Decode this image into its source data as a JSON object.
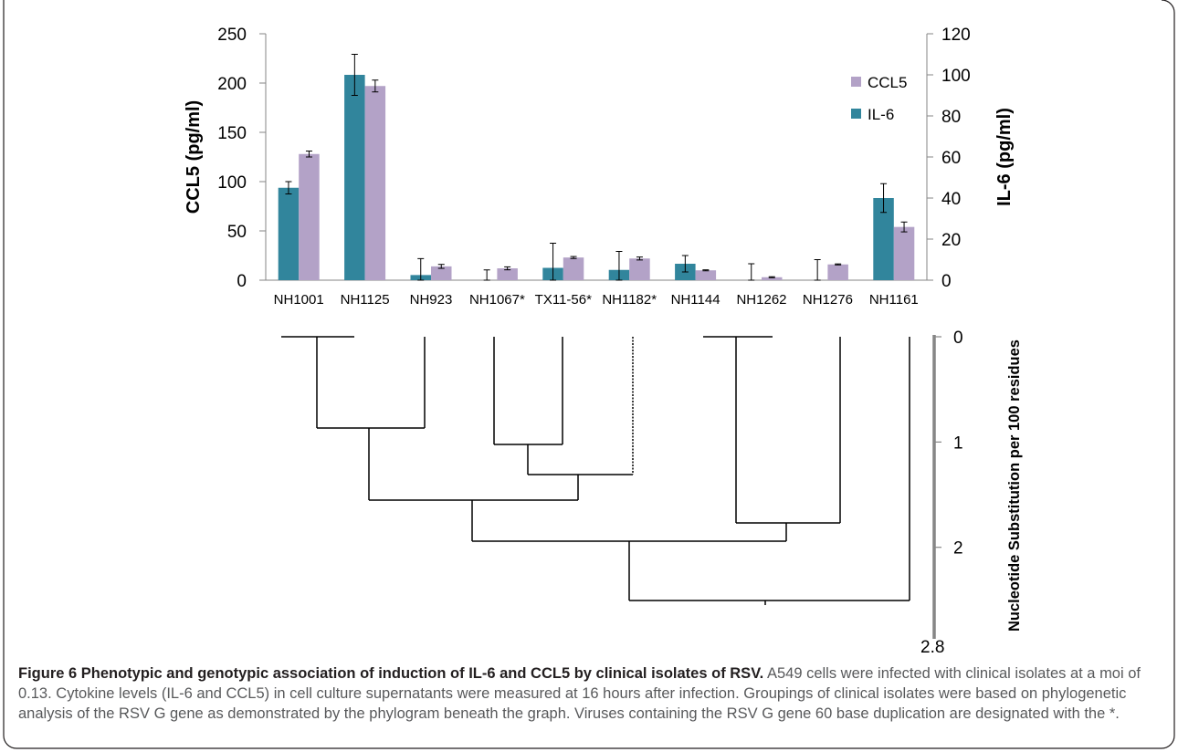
{
  "chart_data": {
    "type": "bar",
    "categories": [
      "NH1001",
      "NH1125",
      "NH923",
      "NH1067*",
      "TX11-56*",
      "NH1182*",
      "NH1144",
      "NH1262",
      "NH1276",
      "NH1161"
    ],
    "series": [
      {
        "name": "IL-6",
        "axis": "right",
        "color": "#31859c",
        "values": [
          45,
          100,
          2.5,
          0,
          6,
          5,
          8,
          0,
          0,
          40
        ],
        "errors": [
          3,
          10,
          8,
          5,
          12,
          9,
          4,
          8,
          10,
          7
        ]
      },
      {
        "name": "CCL5",
        "axis": "left",
        "color": "#b3a2c7",
        "values": [
          128,
          197,
          14,
          12,
          23,
          22,
          10,
          3,
          16,
          54
        ],
        "errors": [
          3,
          6,
          2,
          1.5,
          1,
          1.5,
          0.5,
          0.5,
          0.5,
          5
        ]
      }
    ],
    "left_axis": {
      "label": "CCL5 (pg/ml)",
      "ticks": [
        "0",
        "50",
        "100",
        "150",
        "200",
        "250"
      ],
      "range": [
        0,
        250
      ]
    },
    "right_axis": {
      "label": "IL-6 (pg/ml)",
      "ticks": [
        "0",
        "20",
        "40",
        "60",
        "80",
        "100",
        "120"
      ],
      "range": [
        0,
        120
      ]
    },
    "legend_position": "top-right",
    "grid": false
  },
  "phylogram": {
    "scale_label": "Nucleotide Substitution per 100 residues",
    "scale_ticks": [
      "0",
      "1",
      "2",
      "2.8"
    ],
    "scale_range": [
      0,
      2.8
    ],
    "tips": [
      "NH1001",
      "NH1125",
      "NH923",
      "NH1067*",
      "TX11-56*",
      "NH1182*",
      "NH1144",
      "NH1262",
      "NH1276",
      "NH1161"
    ]
  },
  "caption": {
    "title": "Figure 6 Phenotypic and genotypic association of induction of IL-6 and CCL5 by clinical isolates of RSV.",
    "body": "A549 cells were infected with clinical isolates at a moi of 0.13. Cytokine levels (IL-6 and CCL5) in cell culture supernatants were measured at 16 hours after infection. Groupings of clinical isolates were based on phylogenetic analysis of the RSV G gene as demonstrated by the phylogram beneath the graph. Viruses containing the RSV G gene 60 base duplication are designated with the *."
  }
}
